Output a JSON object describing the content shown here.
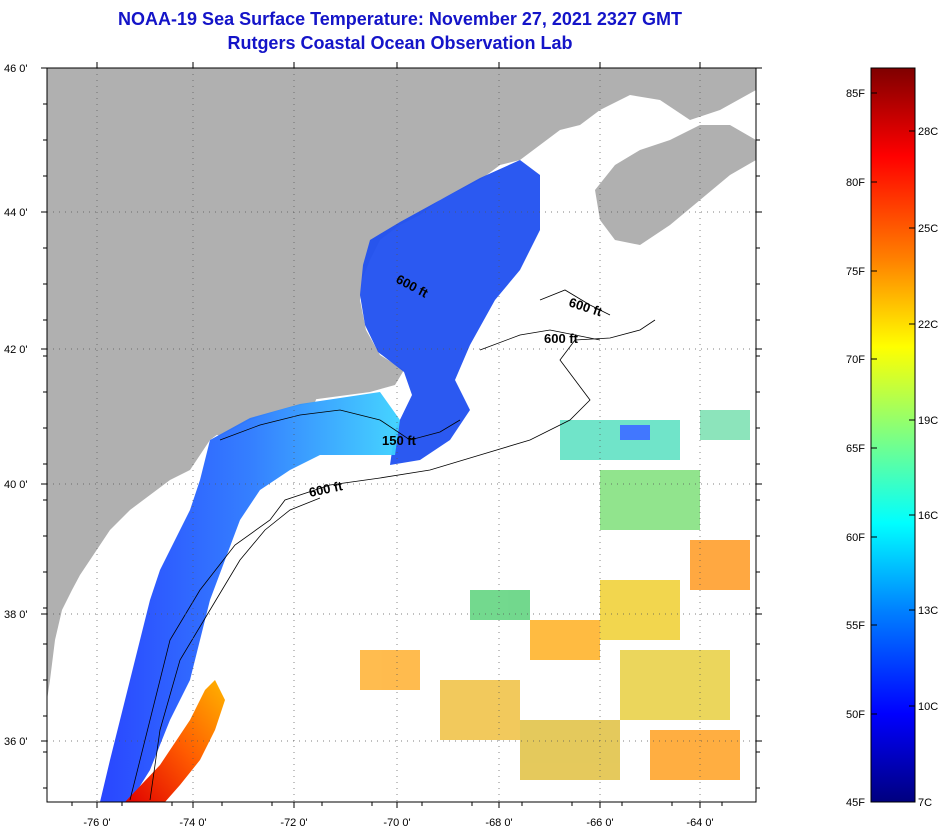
{
  "title": {
    "line1": "NOAA-19 Sea Surface Temperature:  November 27, 2021 2327 GMT",
    "line2": "Rutgers Coastal Ocean Observation Lab"
  },
  "map": {
    "lat_labels": [
      "46 0'",
      "44 0'",
      "42 0'",
      "40 0'",
      "38 0'",
      "36 0'"
    ],
    "lon_labels": [
      "-76 0'",
      "-74 0'",
      "-72 0'",
      "-70 0'",
      "-68 0'",
      "-66 0'",
      "-64 0'"
    ],
    "contour_labels": [
      "600 ft",
      "600 ft",
      "600 ft",
      "150 ft",
      "600 ft"
    ]
  },
  "colorbar": {
    "f_labels": [
      "85F",
      "80F",
      "75F",
      "70F",
      "65F",
      "60F",
      "55F",
      "50F",
      "45F"
    ],
    "c_labels": [
      "28C",
      "25C",
      "22C",
      "19C",
      "16C",
      "13C",
      "10C",
      "7C"
    ]
  },
  "colors": {
    "land": "#b0b0b0",
    "no_data": "#ffffff",
    "title": "#1414c8"
  }
}
